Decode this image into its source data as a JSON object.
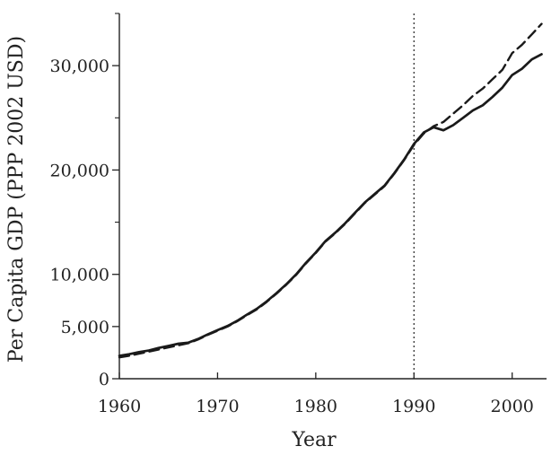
{
  "chart_data": {
    "type": "line",
    "xlabel": "Year",
    "ylabel": "Per Capita GDP (PPP 2002 USD)",
    "xlim": [
      1960,
      2003.5
    ],
    "ylim": [
      0,
      35000
    ],
    "xticks": [
      1960,
      1970,
      1980,
      1990,
      2000
    ],
    "xtick_labels": [
      "1960",
      "1970",
      "1980",
      "1990",
      "2000"
    ],
    "yticks": [
      0,
      5000,
      10000,
      20000,
      30000
    ],
    "ytick_labels": [
      "0",
      "5,000",
      "10,000",
      "20,000",
      "30,000"
    ],
    "grid": false,
    "legend": "none",
    "vline": {
      "x": 1990,
      "style": "dotted"
    },
    "series": [
      {
        "style": "solid",
        "x": [
          1960,
          1961,
          1962,
          1963,
          1964,
          1965,
          1966,
          1967,
          1968,
          1969,
          1970,
          1971,
          1972,
          1973,
          1974,
          1975,
          1976,
          1977,
          1978,
          1979,
          1980,
          1981,
          1982,
          1983,
          1984,
          1985,
          1986,
          1987,
          1988,
          1989,
          1990,
          1991,
          1992,
          1993,
          1994,
          1995,
          1996,
          1997,
          1998,
          1999,
          2000,
          2001,
          2002,
          2003
        ],
        "y": [
          2200,
          2350,
          2550,
          2700,
          2950,
          3150,
          3350,
          3450,
          3800,
          4250,
          4650,
          5050,
          5550,
          6150,
          6700,
          7400,
          8200,
          9050,
          10000,
          11100,
          12100,
          13200,
          14000,
          14900,
          15900,
          16900,
          17700,
          18500,
          19700,
          21000,
          22500,
          23600,
          24100,
          23800,
          24300,
          25000,
          25700,
          26200,
          27000,
          27900,
          29100,
          29700,
          30600,
          31100
        ]
      },
      {
        "style": "dashed",
        "x": [
          1960,
          1961,
          1962,
          1963,
          1964,
          1965,
          1966,
          1967,
          1968,
          1969,
          1970,
          1971,
          1972,
          1973,
          1974,
          1975,
          1976,
          1977,
          1978,
          1979,
          1980,
          1981,
          1982,
          1983,
          1984,
          1985,
          1986,
          1987,
          1988,
          1989,
          1990,
          1991,
          1992,
          1993,
          1994,
          1995,
          1996,
          1997,
          1998,
          1999,
          2000,
          2001,
          2002,
          2003
        ],
        "y": [
          2050,
          2200,
          2400,
          2600,
          2800,
          3000,
          3200,
          3400,
          3750,
          4200,
          4600,
          5000,
          5500,
          6100,
          6650,
          7350,
          8150,
          9000,
          9950,
          11050,
          12050,
          13150,
          13950,
          14850,
          15850,
          16850,
          17650,
          18450,
          19650,
          20950,
          22400,
          23500,
          24200,
          24600,
          25400,
          26200,
          27100,
          27800,
          28700,
          29600,
          31200,
          32000,
          33000,
          34000
        ]
      }
    ]
  }
}
